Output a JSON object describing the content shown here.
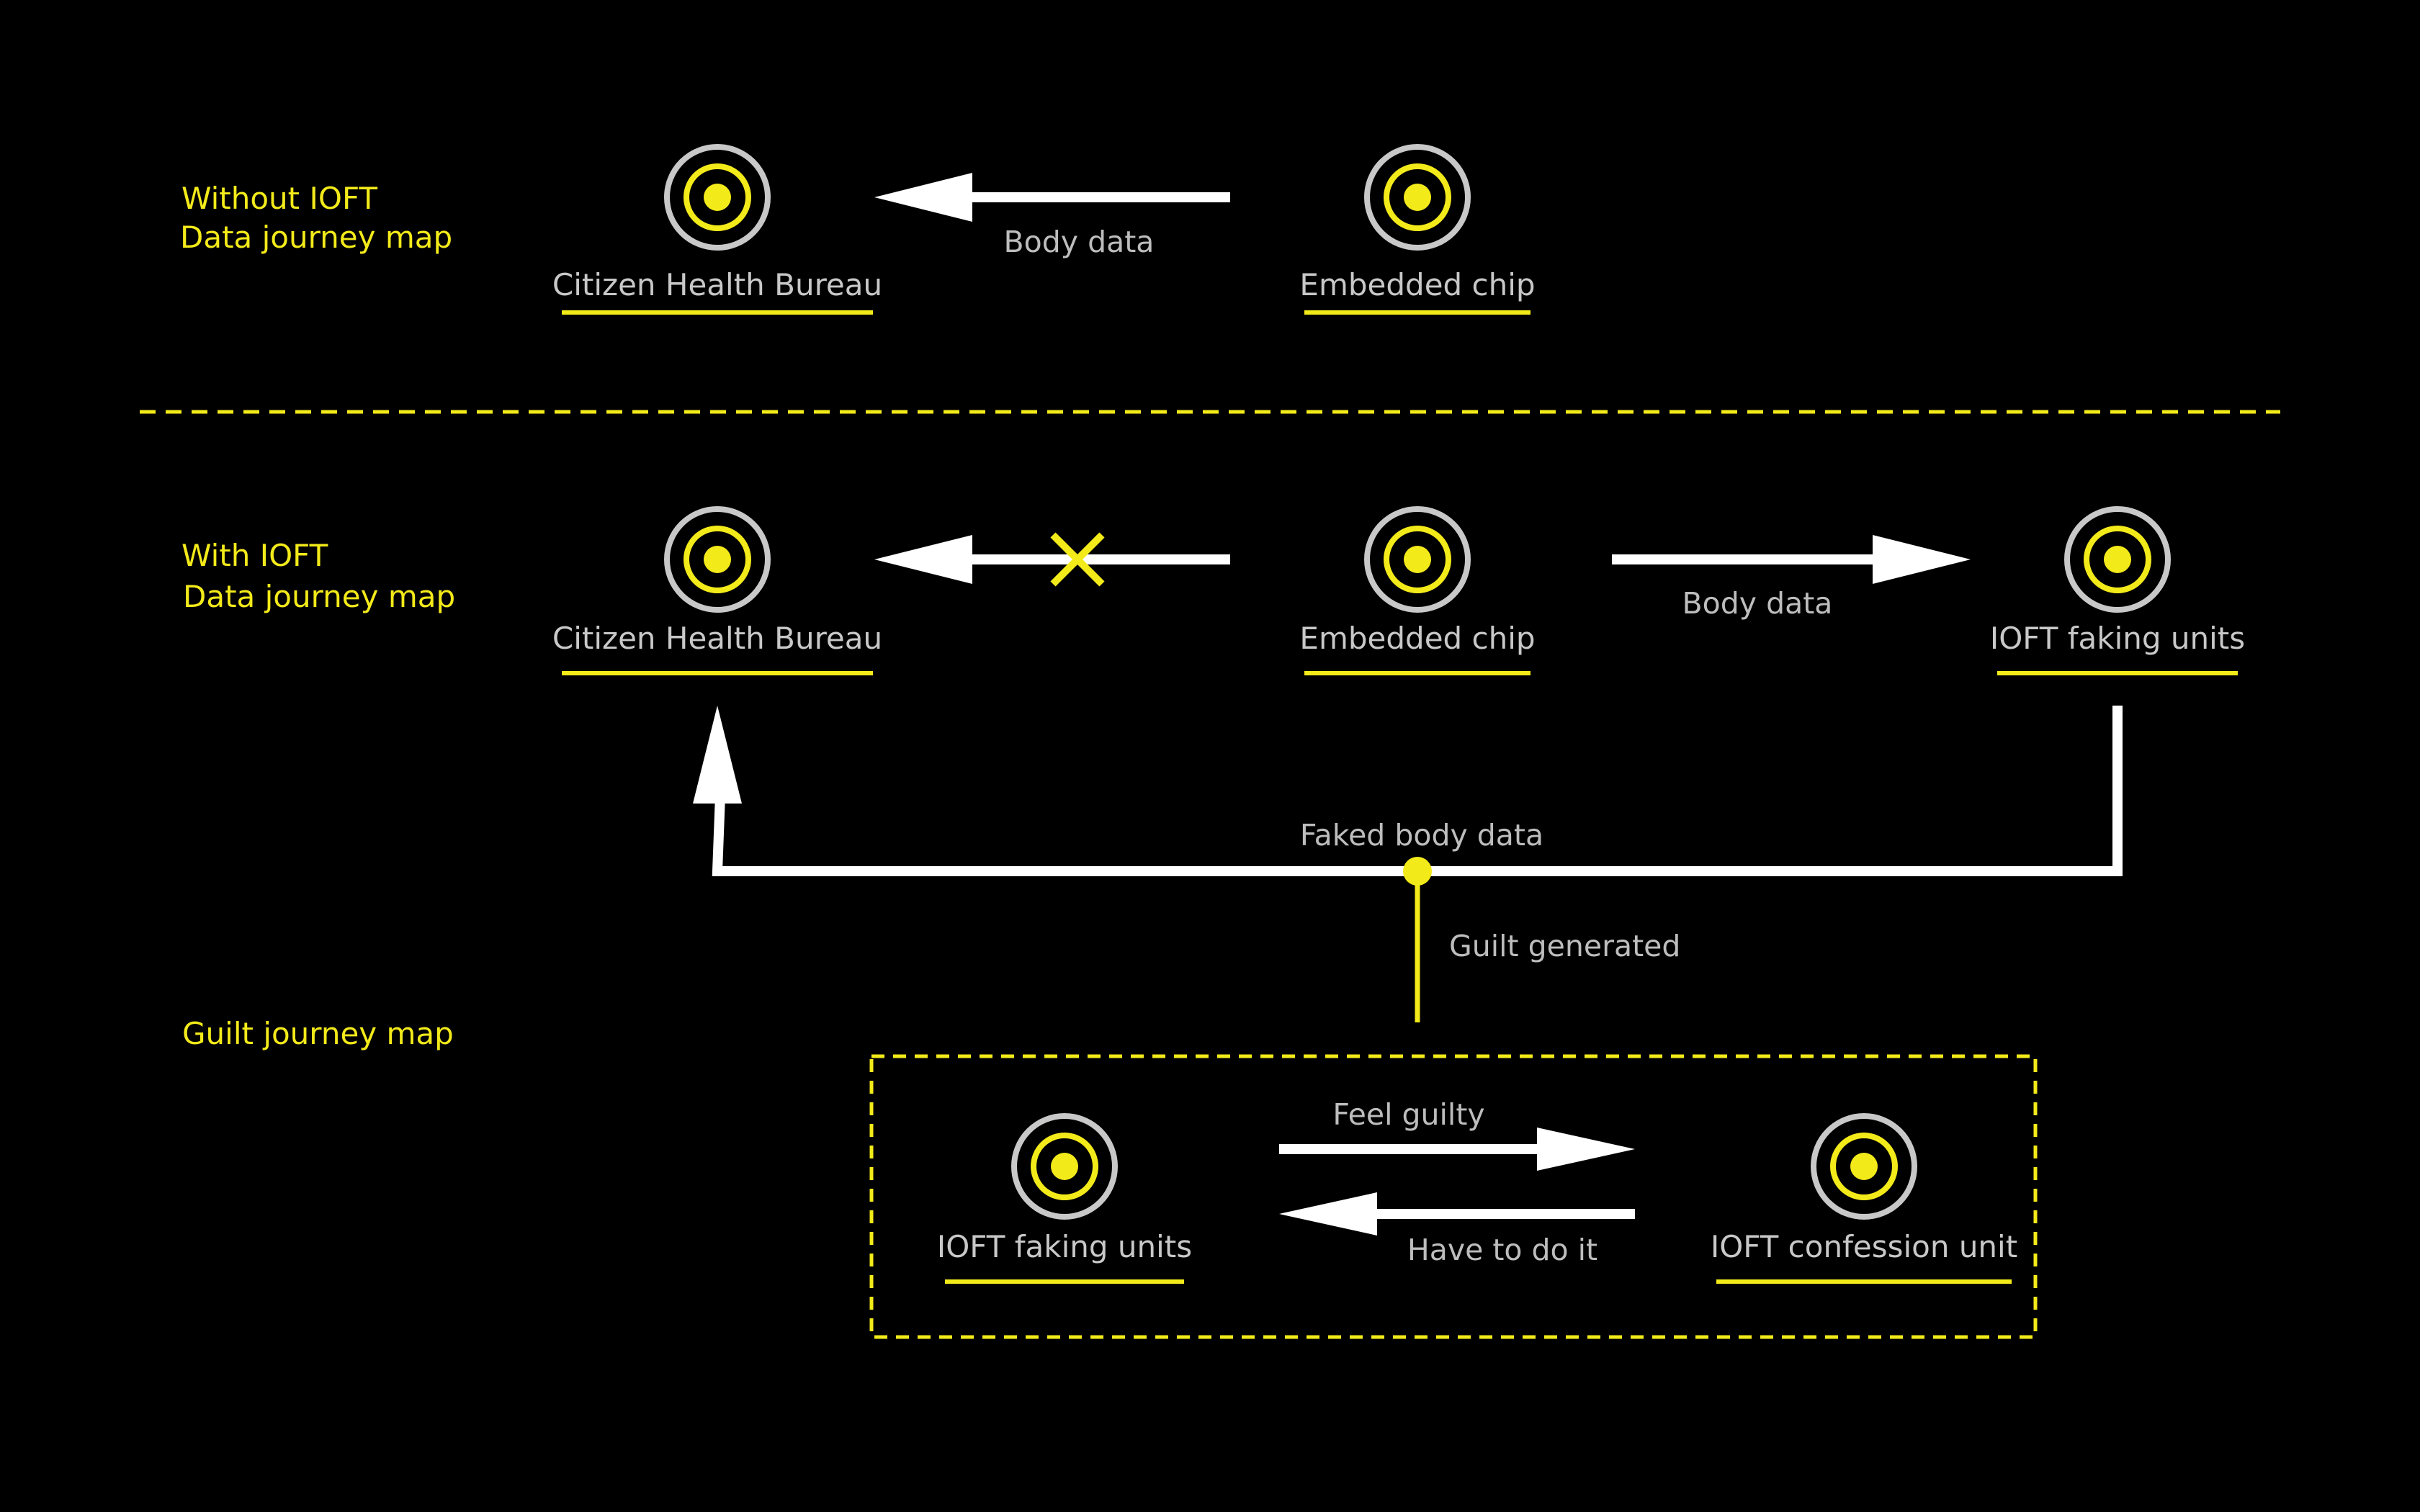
{
  "colors": {
    "background": "#000000",
    "accent_yellow": "#f3ea1a",
    "arrow_white": "#ffffff",
    "label_gray": "#c8c8c8",
    "node_ring_gray": "#c8c8c8"
  },
  "icons": {
    "node": "concentric-target-node-icon",
    "blocked": "x-mark-icon"
  },
  "sections": {
    "without": {
      "line1": "Without IOFT",
      "line2": "Data journey map"
    },
    "with": {
      "line1": "With IOFT",
      "line2": "Data journey map"
    },
    "guilt": {
      "line1": "Guilt journey map"
    }
  },
  "nodes": {
    "without_bureau": "Citizen Health Bureau",
    "without_chip": "Embedded chip",
    "with_bureau": "Citizen Health Bureau",
    "with_chip": "Embedded chip",
    "with_faking": "IOFT faking units",
    "guilt_faking": "IOFT faking units",
    "guilt_confession": "IOFT confession unit"
  },
  "edges": {
    "without_body_data": "Body data",
    "with_body_data": "Body data",
    "faked_body_data": "Faked body data",
    "guilt_generated": "Guilt generated",
    "feel_guilty": "Feel guilty",
    "have_to_do_it": "Have to do it"
  }
}
